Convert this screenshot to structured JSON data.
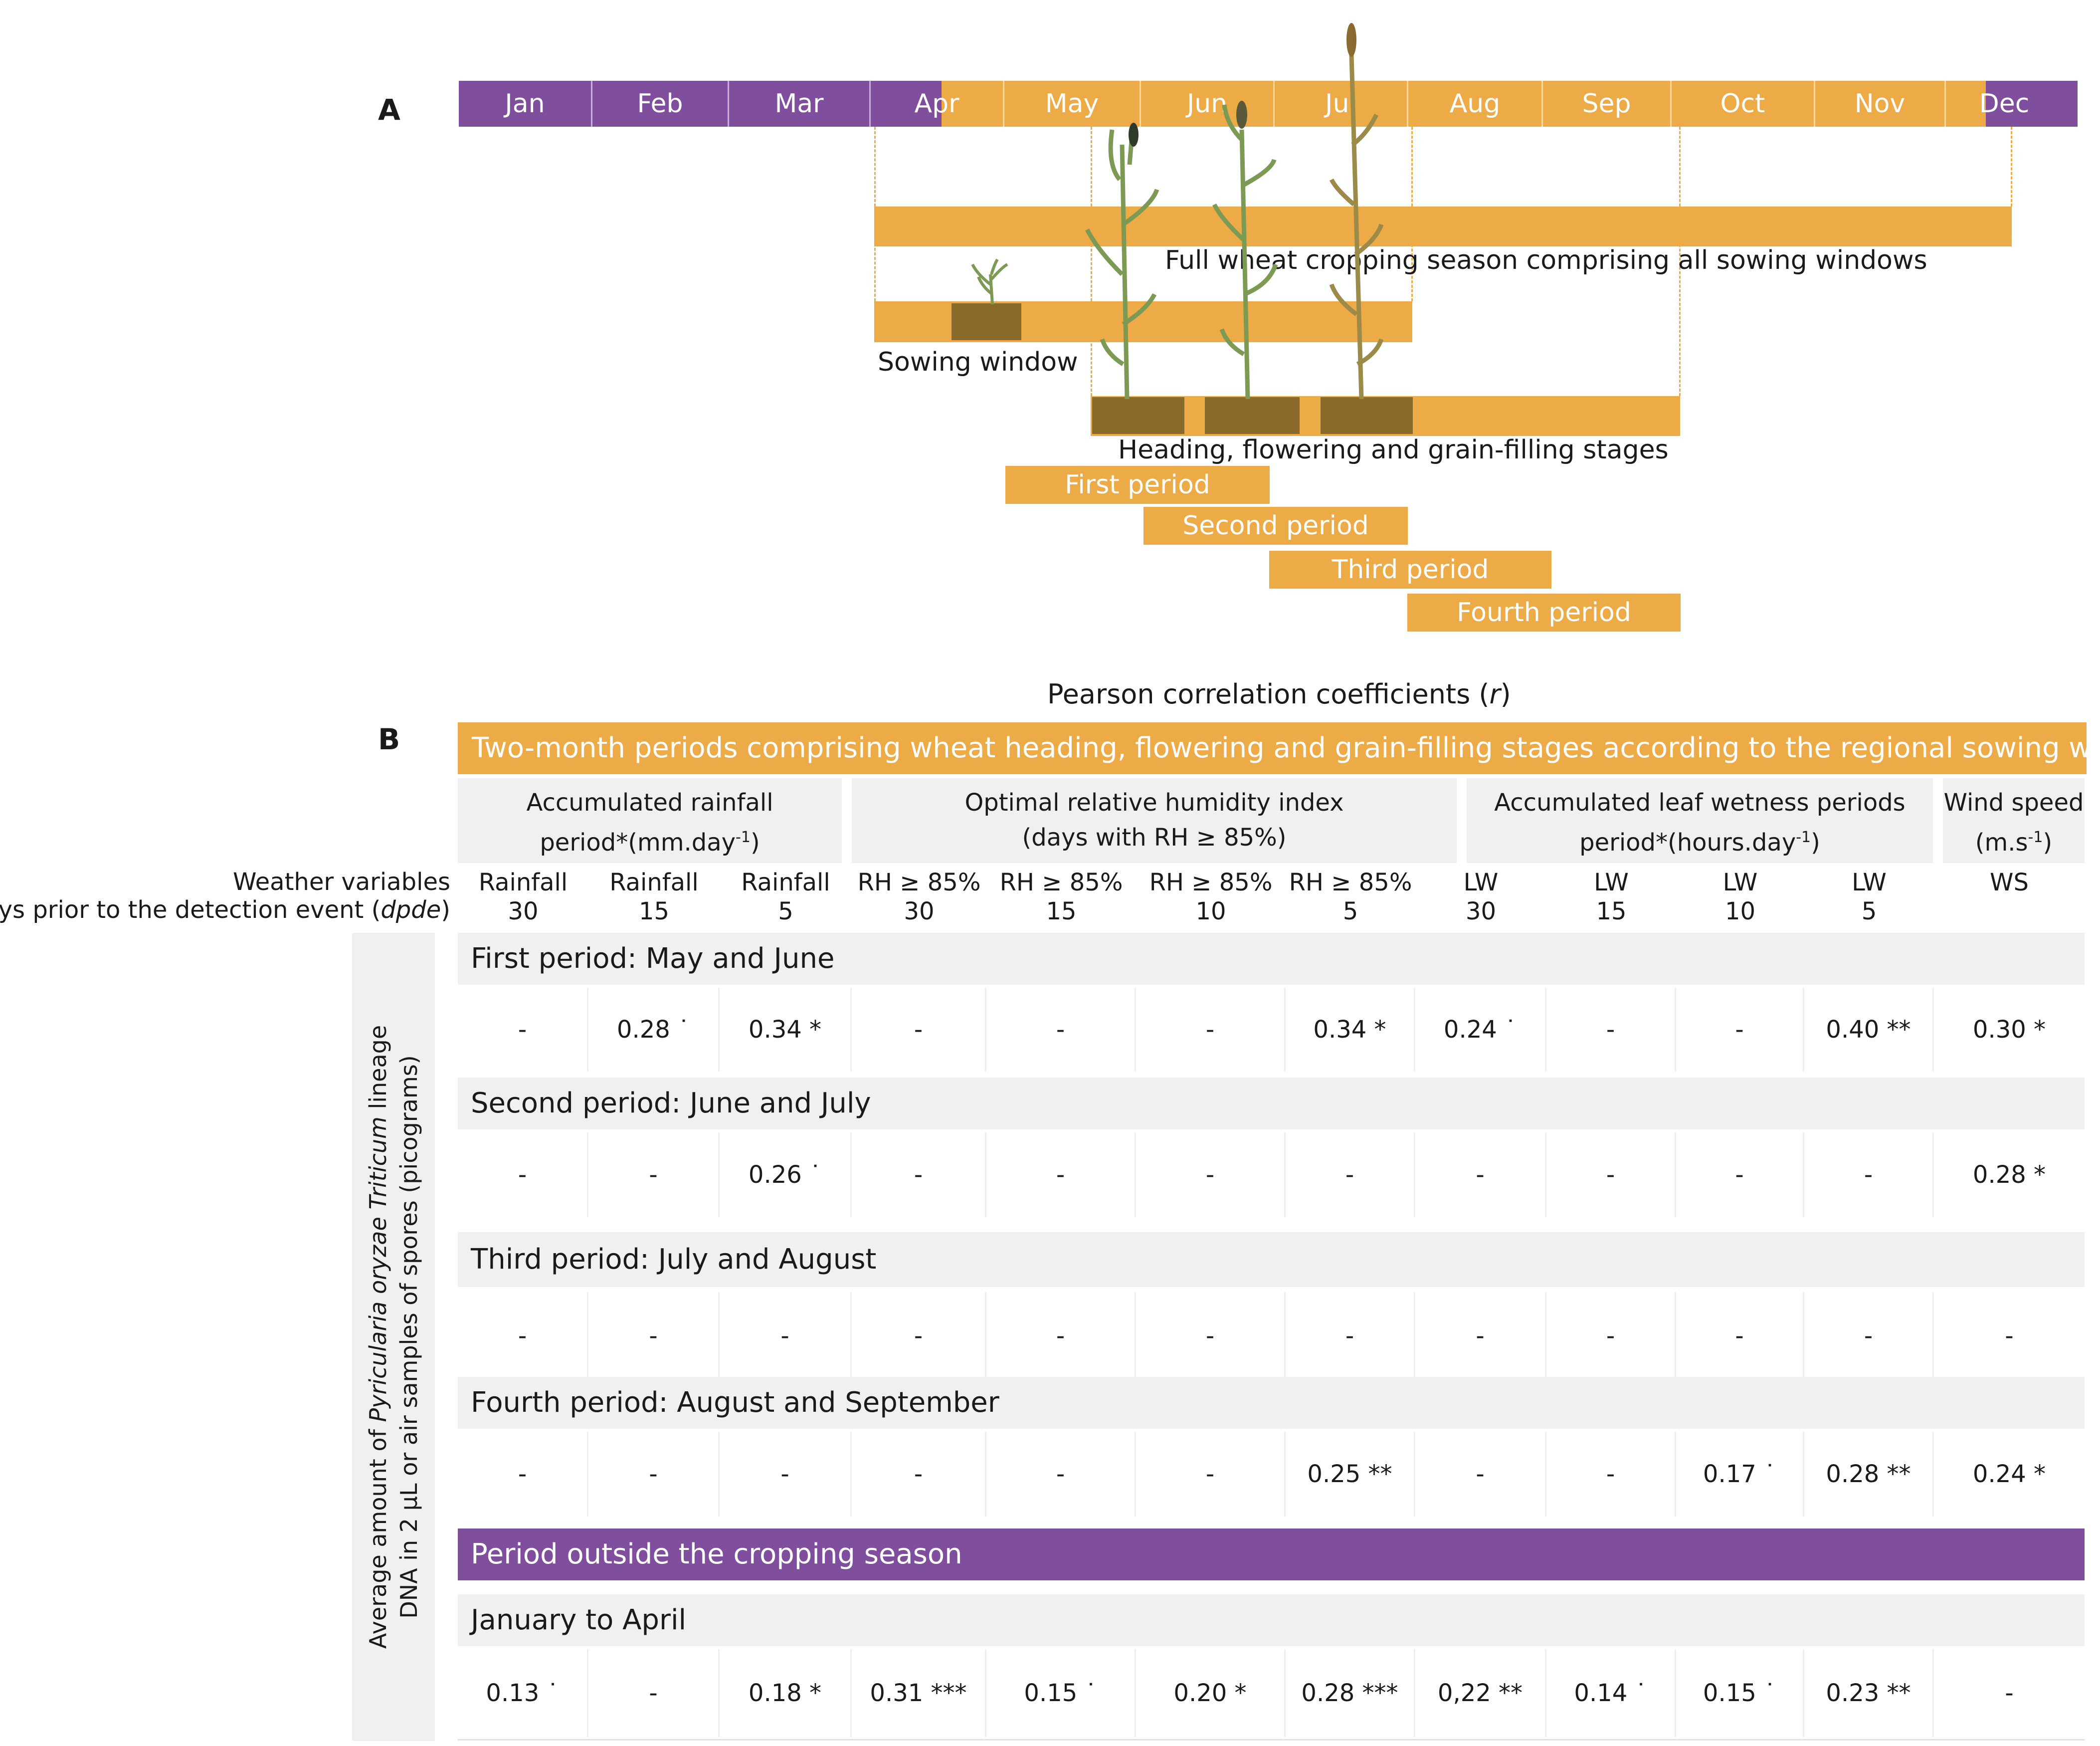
{
  "panel_a": {
    "letter": "A",
    "months": [
      "Jan",
      "Feb",
      "Mar",
      "Apr",
      "May",
      "Jun",
      "Jul",
      "Aug",
      "Sep",
      "Oct",
      "Nov",
      "Dec"
    ],
    "full_season_label": "Full    wheat    cropping season comprising all sowing windows",
    "sowing_label": "Sowing window",
    "heading_label": "Heading, flowering and grain-filling stages",
    "periods": [
      "First period",
      "Second period",
      "Third period",
      "Fourth period"
    ],
    "colors": {
      "purple": "#7f4f9e",
      "orange": "#ecab47",
      "soil": "#8a6a2a",
      "plant": "#7d9a55"
    }
  },
  "panel_b": {
    "letter": "B",
    "title": "Pearson correlation coefficients (r)",
    "title_main": "Pearson correlation coefficients (",
    "title_var": "r",
    "title_end": ")",
    "header": "Two-month periods  comprising wheat heading, flowering and grain-filling stages according to the regional sowing window",
    "groups": [
      {
        "line1": "Accumulated rainfall",
        "line2": "period*(mm.day",
        "sup": "-1",
        "line2_end": ")"
      },
      {
        "line1": "Optimal relative humidity index",
        "line2": "(days with RH ≥ 85%)",
        "sup": "",
        "line2_end": ""
      },
      {
        "line1": "Accumulated leaf wetness periods",
        "line2": "period*(hours.day",
        "sup": "-1",
        "line2_end": ")"
      },
      {
        "line1": "Wind speed",
        "line2": "(m.s",
        "sup": "-1",
        "line2_end": ")"
      }
    ],
    "row_label_1": "Weather variables",
    "row_label_2": "Days prior to the detection event (",
    "row_label_2_var": "dpde",
    "row_label_2_end": ")",
    "columns": [
      {
        "var": "Rainfall",
        "days": "30"
      },
      {
        "var": "Rainfall",
        "days": "15"
      },
      {
        "var": "Rainfall",
        "days": "5"
      },
      {
        "var": "RH ≥ 85%",
        "days": "30"
      },
      {
        "var": "RH ≥ 85%",
        "days": "15"
      },
      {
        "var": "RH ≥ 85%",
        "days": "10"
      },
      {
        "var": "RH ≥ 85%",
        "days": "5"
      },
      {
        "var": "LW",
        "days": "30"
      },
      {
        "var": "LW",
        "days": "15"
      },
      {
        "var": "LW",
        "days": "10"
      },
      {
        "var": "LW",
        "days": "5"
      },
      {
        "var": "WS",
        "days": ""
      }
    ],
    "y_axis_label_line1_pre": "Average amount of ",
    "y_axis_label_line1_italic": "Pyricularia oryzae Triticum",
    "y_axis_label_line1_post": " lineage",
    "y_axis_label_line2": "DNA in 2 μL or air samples of spores (picograms)",
    "sections": [
      {
        "title": "First period: May and June",
        "values": [
          "-",
          "0.28 ˙",
          "0.34 *",
          "-",
          "-",
          "-",
          "0.34 *",
          "0.24  ˙",
          "-",
          "-",
          "0.40 **",
          "0.30 *"
        ]
      },
      {
        "title": "Second period: June and July",
        "values": [
          "-",
          "-",
          "0.26 ˙",
          "-",
          "-",
          "-",
          "-",
          "-",
          "-",
          "-",
          "-",
          "0.28 *"
        ]
      },
      {
        "title": "Third period: July and August",
        "values": [
          "-",
          "-",
          "-",
          "-",
          "-",
          "-",
          "-",
          "-",
          "-",
          "-",
          "-",
          "-"
        ]
      },
      {
        "title": "Fourth period: August and September",
        "values": [
          "-",
          "-",
          "-",
          "-",
          "-",
          "-",
          "0.25 **",
          "-",
          "-",
          "0.17  ˙",
          "0.28 **",
          "0.24 *"
        ]
      }
    ],
    "outside_header": "Period outside the cropping season",
    "outside_section": {
      "title": "January to April",
      "values": [
        "0.13  ˙",
        "-",
        "0.18  *",
        "0.31  ***",
        "0.15  ˙",
        "0.20  *",
        "0.28  ***",
        "0,22  **",
        "0.14  ˙",
        "0.15  ˙",
        "0.23  **",
        "-"
      ]
    }
  }
}
